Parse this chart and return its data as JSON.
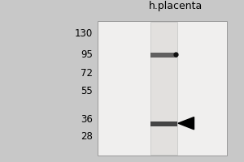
{
  "fig_bg_color": "#c8c8c8",
  "panel_bg_color": "#f0efee",
  "lane_color": "#dcdcdc",
  "mw_markers": [
    130,
    95,
    72,
    55,
    36,
    28
  ],
  "lane_label": "h.placenta",
  "band1_mw": 95,
  "band2_mw": 34,
  "title_fontsize": 9,
  "marker_fontsize": 8.5,
  "ymin": 22,
  "ymax": 150
}
